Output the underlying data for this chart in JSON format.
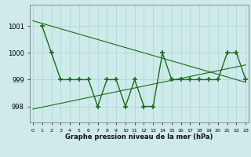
{
  "series1_x": [
    1,
    2,
    3,
    4,
    5,
    6,
    7,
    8,
    9,
    10,
    11,
    12,
    13,
    14,
    15,
    16,
    17,
    18,
    19,
    20,
    21,
    22,
    23
  ],
  "series1_y": [
    1001.0,
    1000.0,
    999.0,
    999.0,
    999.0,
    999.0,
    998.0,
    999.0,
    999.0,
    998.0,
    999.0,
    998.0,
    998.0,
    1000.0,
    999.0,
    999.0,
    999.0,
    999.0,
    999.0,
    999.0,
    1000.0,
    1000.0,
    999.0
  ],
  "series2_x": [
    0,
    23
  ],
  "series2_y": [
    1001.2,
    998.9
  ],
  "series3_x": [
    0,
    23
  ],
  "series3_y": [
    997.9,
    999.55
  ],
  "line_color": "#1a6b1a",
  "bg_color": "#ceeaea",
  "grid_color": "#aad4d4",
  "xlabel": "Graphe pression niveau de la mer (hPa)",
  "yticks": [
    998,
    999,
    1000,
    1001
  ],
  "xtick_labels": [
    "0",
    "1",
    "2",
    "3",
    "4",
    "5",
    "6",
    "7",
    "8",
    "9",
    "10",
    "11",
    "12",
    "13",
    "14",
    "15",
    "16",
    "17",
    "18",
    "19",
    "20",
    "21",
    "22",
    "23"
  ],
  "xticks": [
    0,
    1,
    2,
    3,
    4,
    5,
    6,
    7,
    8,
    9,
    10,
    11,
    12,
    13,
    14,
    15,
    16,
    17,
    18,
    19,
    20,
    21,
    22,
    23
  ],
  "xlim": [
    -0.3,
    23.3
  ],
  "ylim": [
    997.4,
    1001.8
  ]
}
